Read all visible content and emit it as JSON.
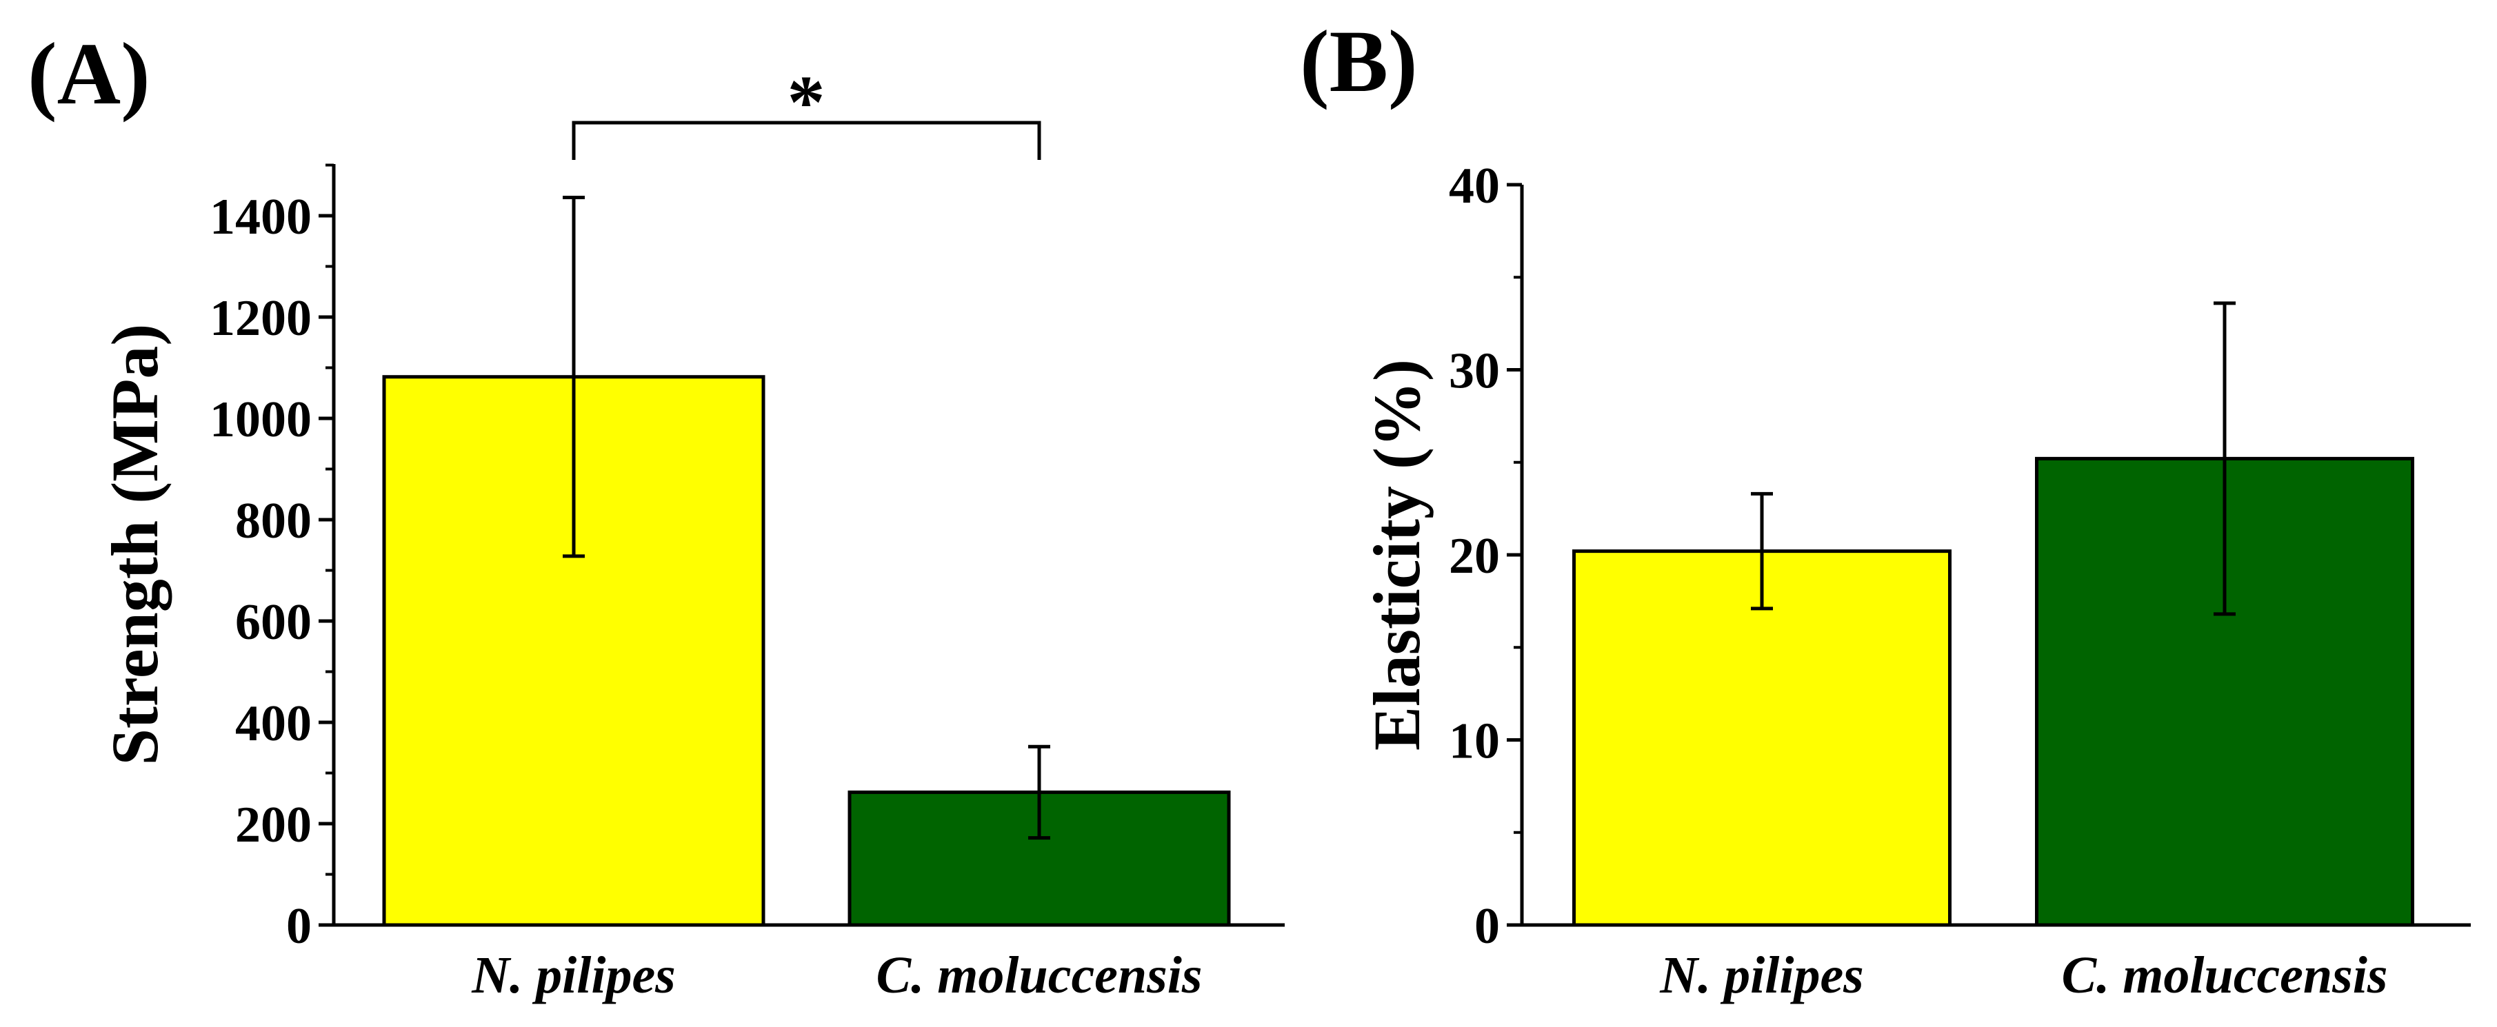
{
  "chart_data": [
    {
      "panel": "(A)",
      "type": "bar",
      "categories": [
        "N. pilipes",
        "C. moluccensis"
      ],
      "values": [
        1082,
        262
      ],
      "errors": [
        354,
        90
      ],
      "colors": [
        "#ffff00",
        "#006400"
      ],
      "title": "",
      "xlabel": "",
      "ylabel": "Strength (MPa)",
      "ylim": [
        0,
        1500
      ],
      "yticks": [
        0,
        200,
        400,
        600,
        800,
        1000,
        1200,
        1400
      ],
      "ytick_labels": [
        "0",
        "200",
        "400",
        "600",
        "800",
        "1000",
        "1200",
        "1400"
      ],
      "minor_tick_step": 100,
      "significance": {
        "label": "*",
        "between": [
          0,
          1
        ]
      }
    },
    {
      "panel": "(B)",
      "type": "bar",
      "categories": [
        "N. pilipes",
        "C. moluccensis"
      ],
      "values": [
        20.2,
        25.2
      ],
      "errors": [
        3.1,
        8.4
      ],
      "colors": [
        "#ffff00",
        "#006400"
      ],
      "title": "",
      "xlabel": "",
      "ylabel": "Elasticity (%)",
      "ylim": [
        0,
        40
      ],
      "yticks": [
        0,
        10,
        20,
        30,
        40
      ],
      "ytick_labels": [
        "0",
        "10",
        "20",
        "30",
        "40"
      ],
      "minor_tick_step": 5
    }
  ]
}
